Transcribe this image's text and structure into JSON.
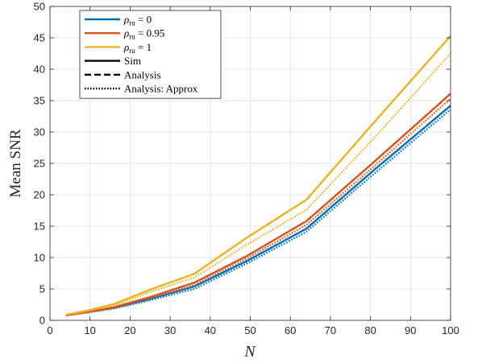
{
  "chart_data": {
    "type": "line",
    "xlabel": "N",
    "ylabel": "Mean SNR",
    "xlim": [
      0,
      100
    ],
    "ylim": [
      0,
      50
    ],
    "xticks": [
      "0",
      "10",
      "20",
      "30",
      "40",
      "50",
      "60",
      "70",
      "80",
      "90",
      "100"
    ],
    "yticks": [
      "0",
      "5",
      "10",
      "15",
      "20",
      "25",
      "30",
      "35",
      "40",
      "45",
      "50"
    ],
    "grid": true,
    "legend_position": "top-left",
    "x": [
      4,
      9,
      16,
      25,
      36,
      49,
      64,
      81,
      100
    ],
    "series": [
      {
        "name_prefix": "ρ",
        "name_sub": "ru",
        "name_suffix": " = 0",
        "method": "Sim",
        "style": "solid",
        "color": "#0072BD",
        "values": [
          0.8,
          1.3,
          2.0,
          3.4,
          5.4,
          9.4,
          14.6,
          24.0,
          34.2
        ]
      },
      {
        "name_prefix": "ρ",
        "name_sub": "ru",
        "name_suffix": " = 0",
        "method": "Analysis",
        "style": "dashed",
        "color": "#0072BD",
        "values": [
          0.8,
          1.3,
          2.0,
          3.4,
          5.4,
          9.4,
          14.6,
          24.0,
          34.2
        ]
      },
      {
        "name_prefix": "ρ",
        "name_sub": "ru",
        "name_suffix": " = 0",
        "method": "Analysis: Approx",
        "style": "dotted",
        "color": "#0072BD",
        "values": [
          0.8,
          1.2,
          1.9,
          3.2,
          5.0,
          9.0,
          14.1,
          23.4,
          33.6
        ]
      },
      {
        "name_prefix": "ρ",
        "name_sub": "ru",
        "name_suffix": " = 0.95",
        "method": "Sim",
        "style": "solid",
        "color": "#D95319",
        "values": [
          0.8,
          1.3,
          2.1,
          3.7,
          6.0,
          10.2,
          15.8,
          25.3,
          36.1
        ]
      },
      {
        "name_prefix": "ρ",
        "name_sub": "ru",
        "name_suffix": " = 0.95",
        "method": "Analysis",
        "style": "dashed",
        "color": "#D95319",
        "values": [
          0.8,
          1.3,
          2.1,
          3.7,
          6.0,
          10.2,
          15.8,
          25.3,
          36.1
        ]
      },
      {
        "name_prefix": "ρ",
        "name_sub": "ru",
        "name_suffix": " = 0.95",
        "method": "Analysis: Approx",
        "style": "dotted",
        "color": "#D95319",
        "values": [
          0.8,
          1.3,
          2.0,
          3.5,
          5.6,
          9.8,
          15.2,
          24.6,
          35.3
        ]
      },
      {
        "name_prefix": "ρ",
        "name_sub": "ru",
        "name_suffix": " = 1",
        "method": "Sim",
        "style": "solid",
        "color": "#EDB120",
        "values": [
          0.9,
          1.5,
          2.6,
          4.9,
          7.4,
          13.1,
          19.2,
          31.6,
          45.3
        ]
      },
      {
        "name_prefix": "ρ",
        "name_sub": "ru",
        "name_suffix": " = 1",
        "method": "Analysis",
        "style": "dashed",
        "color": "#EDB120",
        "values": [
          0.9,
          1.5,
          2.6,
          4.9,
          7.4,
          13.1,
          19.2,
          31.6,
          45.3
        ]
      },
      {
        "name_prefix": "ρ",
        "name_sub": "ru",
        "name_suffix": " = 1",
        "method": "Analysis: Approx",
        "style": "dotted",
        "color": "#EDB120",
        "values": [
          0.9,
          1.4,
          2.4,
          4.5,
          6.8,
          12.0,
          17.6,
          29.1,
          42.5
        ]
      }
    ],
    "legend": [
      {
        "kind": "color",
        "color": "#0072BD",
        "prefix": "ρ",
        "sub": "ru",
        "suffix": " = 0"
      },
      {
        "kind": "color",
        "color": "#D95319",
        "prefix": "ρ",
        "sub": "ru",
        "suffix": " = 0.95"
      },
      {
        "kind": "color",
        "color": "#EDB120",
        "prefix": "ρ",
        "sub": "ru",
        "suffix": " = 1"
      },
      {
        "kind": "style",
        "style": "solid",
        "label": "Sim"
      },
      {
        "kind": "style",
        "style": "dashed",
        "label": "Analysis"
      },
      {
        "kind": "style",
        "style": "dotted",
        "label": "Analysis: Approx"
      }
    ]
  }
}
